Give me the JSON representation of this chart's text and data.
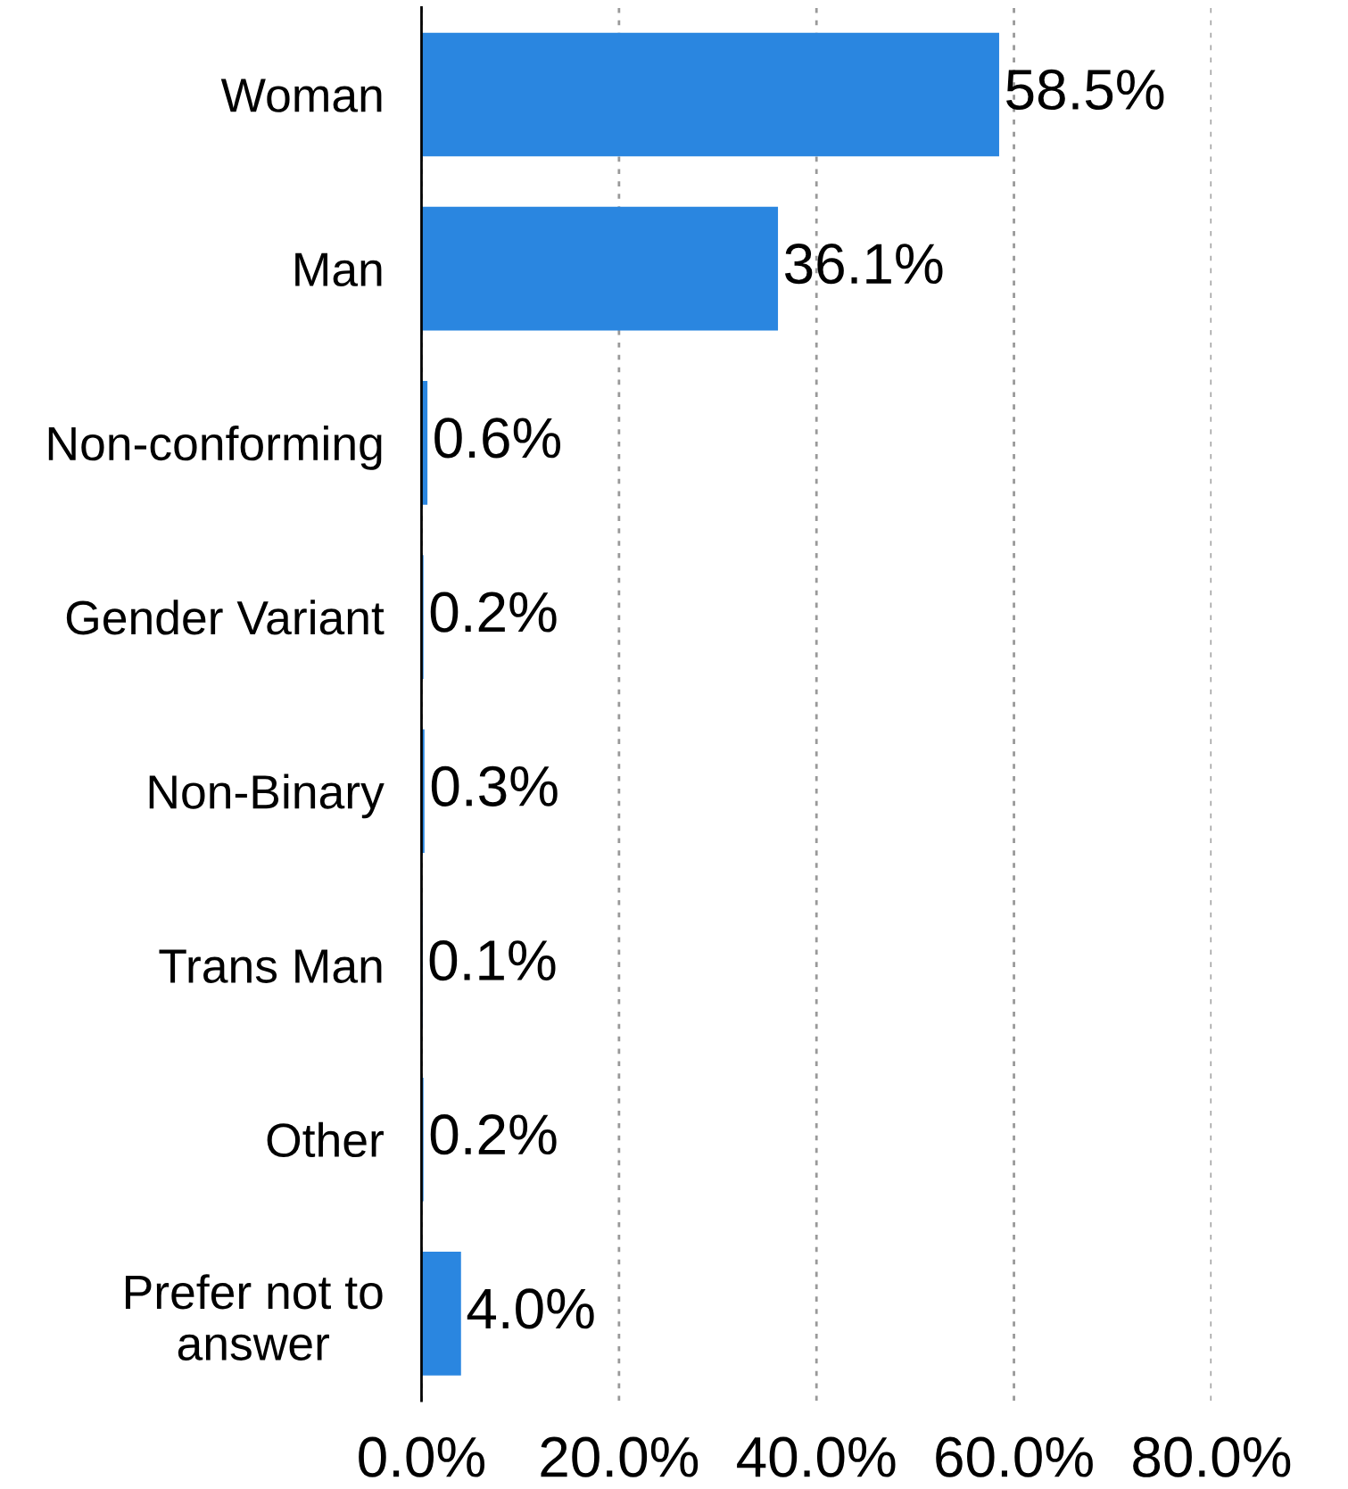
{
  "chart_data": {
    "type": "bar",
    "orientation": "horizontal",
    "categories": [
      "Woman",
      "Man",
      "Non-conforming",
      "Gender Variant",
      "Non-Binary",
      "Trans Man",
      "Other",
      "Prefer not to\nanswer"
    ],
    "values": [
      58.5,
      36.1,
      0.6,
      0.2,
      0.3,
      0.1,
      0.2,
      4.0
    ],
    "value_labels": [
      "58.5%",
      "36.1%",
      "0.6%",
      "0.2%",
      "0.3%",
      "0.1%",
      "0.2%",
      "4.0%"
    ],
    "color": "#2a86e0",
    "xlim": [
      0,
      80
    ],
    "xticks": [
      {
        "value": 0,
        "label": "0.0%"
      },
      {
        "value": 20,
        "label": "20.0%"
      },
      {
        "value": 40,
        "label": "40.0%"
      },
      {
        "value": 60,
        "label": "60.0%"
      },
      {
        "value": 80,
        "label": "80.0%"
      }
    ],
    "grid": "x"
  }
}
